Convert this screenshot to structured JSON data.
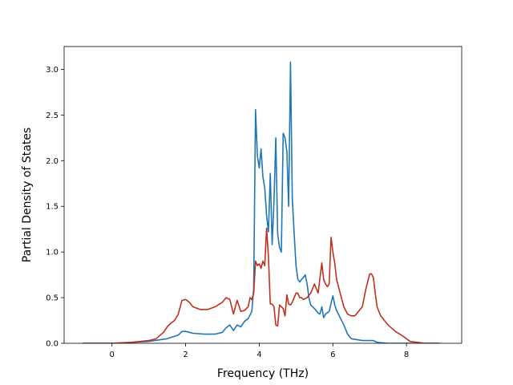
{
  "chart_data": {
    "type": "line",
    "title": "",
    "xlabel": "Frequency (THz)",
    "ylabel": "Partial Density of States",
    "xlim": [
      -1.3,
      9.5
    ],
    "ylim": [
      0,
      3.25
    ],
    "xticks": [
      0,
      2,
      4,
      6,
      8
    ],
    "xtick_labels": [
      "0",
      "2",
      "4",
      "6",
      "8"
    ],
    "yticks": [
      0.0,
      0.5,
      1.0,
      1.5,
      2.0,
      2.5,
      3.0
    ],
    "ytick_labels": [
      "0.0",
      "0.5",
      "1.0",
      "1.5",
      "2.0",
      "2.5",
      "3.0"
    ],
    "grid": false,
    "series": [
      {
        "color": "#1f77b4",
        "x": [
          -0.8,
          0.0,
          0.5,
          1.0,
          1.5,
          1.8,
          1.9,
          2.0,
          2.1,
          2.2,
          2.5,
          2.8,
          3.0,
          3.1,
          3.2,
          3.3,
          3.4,
          3.5,
          3.6,
          3.7,
          3.8,
          3.85,
          3.9,
          3.95,
          4.0,
          4.05,
          4.1,
          4.15,
          4.2,
          4.25,
          4.3,
          4.35,
          4.4,
          4.45,
          4.5,
          4.55,
          4.6,
          4.65,
          4.7,
          4.75,
          4.8,
          4.85,
          4.9,
          4.95,
          5.0,
          5.05,
          5.1,
          5.15,
          5.2,
          5.25,
          5.3,
          5.35,
          5.4,
          5.5,
          5.6,
          5.65,
          5.7,
          5.75,
          5.8,
          5.9,
          6.0,
          6.05,
          6.1,
          6.2,
          6.3,
          6.4,
          6.5,
          6.8,
          7.0,
          7.1,
          7.2,
          7.5,
          8.0,
          8.5,
          8.9
        ],
        "y": [
          0.0,
          0.0,
          0.01,
          0.02,
          0.05,
          0.09,
          0.13,
          0.13,
          0.12,
          0.11,
          0.1,
          0.1,
          0.12,
          0.17,
          0.2,
          0.14,
          0.2,
          0.18,
          0.24,
          0.27,
          0.35,
          0.6,
          2.56,
          2.05,
          1.92,
          2.13,
          1.82,
          1.7,
          1.4,
          1.22,
          1.86,
          1.08,
          1.55,
          2.25,
          1.2,
          1.05,
          1.0,
          2.3,
          2.25,
          2.1,
          1.5,
          3.08,
          1.58,
          1.2,
          0.85,
          0.7,
          0.67,
          0.7,
          0.72,
          0.75,
          0.65,
          0.5,
          0.42,
          0.38,
          0.33,
          0.32,
          0.4,
          0.28,
          0.32,
          0.35,
          0.52,
          0.42,
          0.36,
          0.28,
          0.2,
          0.1,
          0.05,
          0.03,
          0.03,
          0.03,
          0.01,
          0.0,
          0.0,
          0.0,
          0.0
        ]
      },
      {
        "color": "#c0301e",
        "x": [
          -0.8,
          0.0,
          0.5,
          1.0,
          1.2,
          1.4,
          1.5,
          1.6,
          1.7,
          1.8,
          1.9,
          2.0,
          2.1,
          2.2,
          2.4,
          2.6,
          2.8,
          3.0,
          3.1,
          3.2,
          3.3,
          3.35,
          3.4,
          3.5,
          3.6,
          3.7,
          3.75,
          3.8,
          3.85,
          3.9,
          3.95,
          4.0,
          4.05,
          4.1,
          4.15,
          4.2,
          4.25,
          4.3,
          4.35,
          4.4,
          4.45,
          4.5,
          4.55,
          4.6,
          4.65,
          4.7,
          4.75,
          4.8,
          4.85,
          4.9,
          4.95,
          5.0,
          5.05,
          5.1,
          5.15,
          5.2,
          5.3,
          5.4,
          5.5,
          5.6,
          5.7,
          5.75,
          5.8,
          5.85,
          5.9,
          5.95,
          6.0,
          6.05,
          6.1,
          6.2,
          6.3,
          6.4,
          6.5,
          6.6,
          6.8,
          6.9,
          7.0,
          7.05,
          7.1,
          7.15,
          7.2,
          7.3,
          7.5,
          7.7,
          7.9,
          8.0,
          8.1,
          8.5,
          8.9
        ],
        "y": [
          0.0,
          0.0,
          0.01,
          0.03,
          0.05,
          0.12,
          0.18,
          0.22,
          0.25,
          0.32,
          0.47,
          0.48,
          0.45,
          0.4,
          0.37,
          0.37,
          0.4,
          0.45,
          0.5,
          0.48,
          0.32,
          0.4,
          0.47,
          0.35,
          0.36,
          0.4,
          0.5,
          0.48,
          0.55,
          0.9,
          0.85,
          0.87,
          0.82,
          0.9,
          0.85,
          1.26,
          0.95,
          0.43,
          0.43,
          0.4,
          0.2,
          0.19,
          0.42,
          0.4,
          0.38,
          0.3,
          0.53,
          0.43,
          0.42,
          0.45,
          0.5,
          0.55,
          0.55,
          0.5,
          0.5,
          0.48,
          0.5,
          0.55,
          0.65,
          0.55,
          0.88,
          0.7,
          0.65,
          0.62,
          0.65,
          1.16,
          1.0,
          0.88,
          0.7,
          0.55,
          0.4,
          0.32,
          0.3,
          0.3,
          0.4,
          0.6,
          0.76,
          0.76,
          0.72,
          0.55,
          0.4,
          0.3,
          0.2,
          0.13,
          0.08,
          0.05,
          0.02,
          0.0,
          0.0
        ]
      }
    ]
  }
}
